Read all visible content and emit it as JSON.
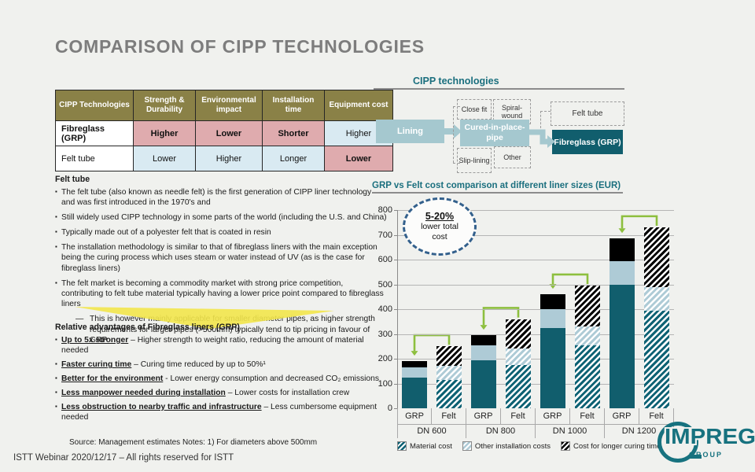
{
  "slide": {
    "title": "COMPARISON OF CIPP TECHNOLOGIES",
    "footer": "ISTT Webinar 2020/12/17 – All rights reserved for ISTT",
    "source_note": "Source: Management estimates Notes: 1) For diameters above 500mm"
  },
  "colors": {
    "background": "#f0f1ee",
    "title_gray": "#7d7d7d",
    "heading_teal": "#1a6f7e",
    "teal_dark": "#115e6d",
    "teal_light": "#a5c8cf",
    "blue_light": "#aecbd6",
    "table_olive": "#8a8147",
    "cell_pink": "#dfabae",
    "cell_blue": "#d9eaf2",
    "arrow_green": "#8dbf3e",
    "callout_blue": "#33608c",
    "highlight_yellow": "#f2e54b"
  },
  "comparison_table": {
    "headers": [
      "CIPP Technologies",
      "Strength & Durability",
      "Environmental impact",
      "Installation time",
      "Equipment cost"
    ],
    "rows": [
      {
        "label": "Fibreglass (GRP)",
        "label_bold": true,
        "cells": [
          {
            "text": "Higher",
            "tone": "pink",
            "bold": true
          },
          {
            "text": "Lower",
            "tone": "pink",
            "bold": true
          },
          {
            "text": "Shorter",
            "tone": "pink",
            "bold": true
          },
          {
            "text": "Higher",
            "tone": "blue",
            "bold": false
          }
        ]
      },
      {
        "label": "Felt tube",
        "label_bold": false,
        "cells": [
          {
            "text": "Lower",
            "tone": "blue",
            "bold": false
          },
          {
            "text": "Higher",
            "tone": "blue",
            "bold": false
          },
          {
            "text": "Longer",
            "tone": "blue",
            "bold": false
          },
          {
            "text": "Lower",
            "tone": "pink",
            "bold": true
          }
        ]
      }
    ]
  },
  "felt_section": {
    "heading": "Felt tube",
    "bullets": [
      "The felt tube (also known as needle felt) is the first generation of CIPP liner technology and was first introduced in the 1970's and",
      "Still widely used CIPP technology in some parts of the world (including the U.S. and China)",
      "Typically made out of a polyester felt that is coated in resin",
      "The installation methodology is similar to that of fibreglass liners with the main exception being the curing process which uses steam or water instead of UV (as is the case for fibreglass liners)",
      "The felt market is becoming a commodity market with strong price competition, contributing to felt tube material typically having a lower price point compared to fibreglass liners"
    ],
    "sub_bullet": "This is however mainly applicable for smaller diameter pipes, as higher strength requirements for larger pipes (>500mm) typically tend to tip pricing in favour of GRP"
  },
  "advantages_section": {
    "heading": "Relative advantages of Fibreglass liners (GRP)",
    "bullets": [
      {
        "lead": "Up to 5x stronger",
        "rest": " – Higher strength to weight ratio, reducing the amount of material needed"
      },
      {
        "lead": "Faster curing time",
        "rest": " – Curing time reduced by up to 50%¹"
      },
      {
        "lead": "Better for the environment",
        "rest": " - Lower energy consumption and decreased CO₂ emissions"
      },
      {
        "lead": "Less manpower needed during installation",
        "rest": " – Lower costs for installation crew"
      },
      {
        "lead": "Less obstruction to nearby traffic and infrastructure",
        "rest": " – Less cumbersome equipment needed"
      }
    ]
  },
  "diagram": {
    "title": "CIPP technologies",
    "lining": "Lining",
    "cipp": "Cured-in-place-pipe",
    "close_fit": "Close fit",
    "spiral_wound": "Spiral-wound",
    "slip_lining": "Slip-lining",
    "other": "Other",
    "felt_tube": "Felt tube",
    "fibreglass": "Fibreglass (GRP)"
  },
  "chart_data": {
    "type": "bar",
    "stacked": true,
    "title": "GRP vs Felt cost comparison at different liner sizes (EUR)",
    "unit": "EUR",
    "groups": [
      "DN 600",
      "DN 800",
      "DN 1000",
      "DN 1200"
    ],
    "bar_labels": [
      "GRP",
      "Felt"
    ],
    "series": [
      {
        "name": "Material cost",
        "grp": [
          125,
          195,
          325,
          500
        ],
        "felt": [
          115,
          175,
          255,
          395
        ]
      },
      {
        "name": "Other installation costs",
        "grp": [
          40,
          60,
          75,
          95
        ],
        "felt": [
          55,
          65,
          75,
          95
        ]
      },
      {
        "name": "Cost for longer curing time",
        "grp": [
          25,
          40,
          60,
          90
        ],
        "felt": [
          80,
          120,
          165,
          240
        ]
      }
    ],
    "totals": {
      "grp": [
        190,
        295,
        460,
        685
      ],
      "felt": [
        250,
        360,
        495,
        730
      ]
    },
    "ylim": [
      0,
      800
    ],
    "ytick_step": 100,
    "grid": true,
    "legend_position": "bottom",
    "callout": {
      "value": "5-20%",
      "label_line1": "lower total",
      "label_line2": "cost"
    }
  },
  "logo": {
    "name": "IMPREG",
    "sub": "GROUP"
  }
}
